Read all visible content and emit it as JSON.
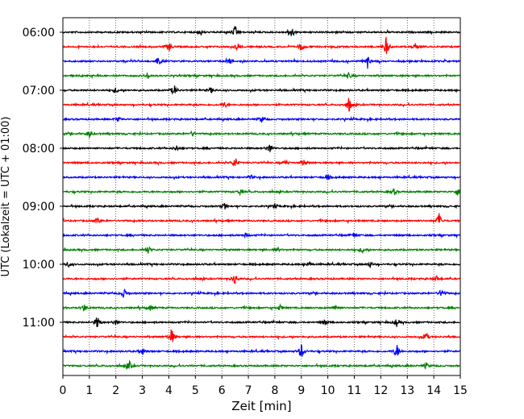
{
  "chart_data": {
    "type": "line",
    "title": "",
    "xlabel": "Zeit  [min]",
    "ylabel": "UTC (Lokalzeit = UTC + 01:00)",
    "xlim": [
      0,
      15
    ],
    "x_ticks": [
      0,
      1,
      2,
      3,
      4,
      5,
      6,
      7,
      8,
      9,
      10,
      11,
      12,
      13,
      14,
      15
    ],
    "x_tick_labels": [
      "0",
      "1",
      "2",
      "3",
      "4",
      "5",
      "6",
      "7",
      "8",
      "9",
      "10",
      "11",
      "12",
      "13",
      "14",
      "15"
    ],
    "y_tick_labels": [
      "06:00",
      "07:00",
      "08:00",
      "09:00",
      "10:00",
      "11:00"
    ],
    "grid": "vertical dotted",
    "trace_colors": [
      "#000000",
      "#ff0000",
      "#0000ff",
      "#008000"
    ],
    "traces": [
      {
        "start": "06:00",
        "color": "#000000",
        "events": [
          [
            6.5,
            0.6
          ],
          [
            8.6,
            0.6
          ],
          [
            5.2,
            0.3
          ]
        ]
      },
      {
        "start": "06:15",
        "color": "#ff0000",
        "events": [
          [
            4.0,
            0.5
          ],
          [
            6.6,
            0.4
          ],
          [
            9.0,
            0.5
          ],
          [
            12.2,
            1.0
          ],
          [
            13.3,
            0.3
          ]
        ]
      },
      {
        "start": "06:30",
        "color": "#0000ff",
        "events": [
          [
            3.6,
            0.5
          ],
          [
            11.5,
            0.7
          ],
          [
            6.3,
            0.3
          ]
        ]
      },
      {
        "start": "06:45",
        "color": "#008000",
        "events": [
          [
            3.2,
            0.3
          ],
          [
            10.8,
            0.3
          ]
        ]
      },
      {
        "start": "07:00",
        "color": "#000000",
        "events": [
          [
            4.2,
            0.6
          ],
          [
            2.0,
            0.3
          ],
          [
            5.6,
            0.3
          ]
        ]
      },
      {
        "start": "07:15",
        "color": "#ff0000",
        "events": [
          [
            10.8,
            0.8
          ],
          [
            6.1,
            0.3
          ]
        ]
      },
      {
        "start": "07:30",
        "color": "#0000ff",
        "events": [
          [
            2.1,
            0.3
          ],
          [
            7.5,
            0.3
          ]
        ]
      },
      {
        "start": "07:45",
        "color": "#008000",
        "events": [
          [
            1.0,
            0.4
          ],
          [
            4.9,
            0.3
          ]
        ]
      },
      {
        "start": "08:00",
        "color": "#000000",
        "events": [
          [
            4.3,
            0.3
          ],
          [
            7.8,
            0.5
          ]
        ]
      },
      {
        "start": "08:15",
        "color": "#ff0000",
        "events": [
          [
            6.5,
            0.6
          ],
          [
            8.4,
            0.3
          ],
          [
            9.1,
            0.4
          ]
        ]
      },
      {
        "start": "08:30",
        "color": "#0000ff",
        "events": [
          [
            10.0,
            0.3
          ],
          [
            7.1,
            0.2
          ]
        ]
      },
      {
        "start": "08:45",
        "color": "#008000",
        "events": [
          [
            6.7,
            0.3
          ],
          [
            12.5,
            0.3
          ],
          [
            14.9,
            0.4
          ]
        ]
      },
      {
        "start": "09:00",
        "color": "#000000",
        "events": [
          [
            6.1,
            0.3
          ],
          [
            8.0,
            0.2
          ]
        ]
      },
      {
        "start": "09:15",
        "color": "#ff0000",
        "events": [
          [
            14.2,
            0.8
          ],
          [
            1.3,
            0.3
          ]
        ]
      },
      {
        "start": "09:30",
        "color": "#0000ff",
        "events": [
          [
            6.9,
            0.2
          ],
          [
            11.0,
            0.2
          ]
        ]
      },
      {
        "start": "09:45",
        "color": "#008000",
        "events": [
          [
            3.2,
            0.4
          ],
          [
            11.3,
            0.3
          ],
          [
            8.1,
            0.2
          ]
        ]
      },
      {
        "start": "10:00",
        "color": "#000000",
        "events": [
          [
            0.2,
            0.3
          ],
          [
            9.3,
            0.3
          ],
          [
            11.6,
            0.3
          ]
        ]
      },
      {
        "start": "10:15",
        "color": "#ff0000",
        "events": [
          [
            6.5,
            0.6
          ],
          [
            14.1,
            0.3
          ]
        ]
      },
      {
        "start": "10:30",
        "color": "#0000ff",
        "events": [
          [
            2.3,
            0.5
          ],
          [
            14.3,
            0.5
          ]
        ]
      },
      {
        "start": "10:45",
        "color": "#008000",
        "events": [
          [
            0.8,
            0.4
          ],
          [
            3.3,
            0.3
          ],
          [
            8.2,
            0.3
          ],
          [
            10.3,
            0.3
          ]
        ]
      },
      {
        "start": "11:00",
        "color": "#000000",
        "events": [
          [
            1.3,
            0.7
          ],
          [
            2.0,
            0.3
          ],
          [
            9.9,
            0.3
          ],
          [
            12.6,
            0.4
          ]
        ]
      },
      {
        "start": "11:15",
        "color": "#ff0000",
        "events": [
          [
            4.1,
            1.0
          ],
          [
            13.7,
            0.5
          ]
        ]
      },
      {
        "start": "11:30",
        "color": "#0000ff",
        "events": [
          [
            3.0,
            0.4
          ],
          [
            9.0,
            0.8
          ],
          [
            12.6,
            0.8
          ]
        ]
      },
      {
        "start": "11:45",
        "color": "#008000",
        "events": [
          [
            2.5,
            0.5
          ],
          [
            13.7,
            0.3
          ]
        ]
      }
    ]
  }
}
